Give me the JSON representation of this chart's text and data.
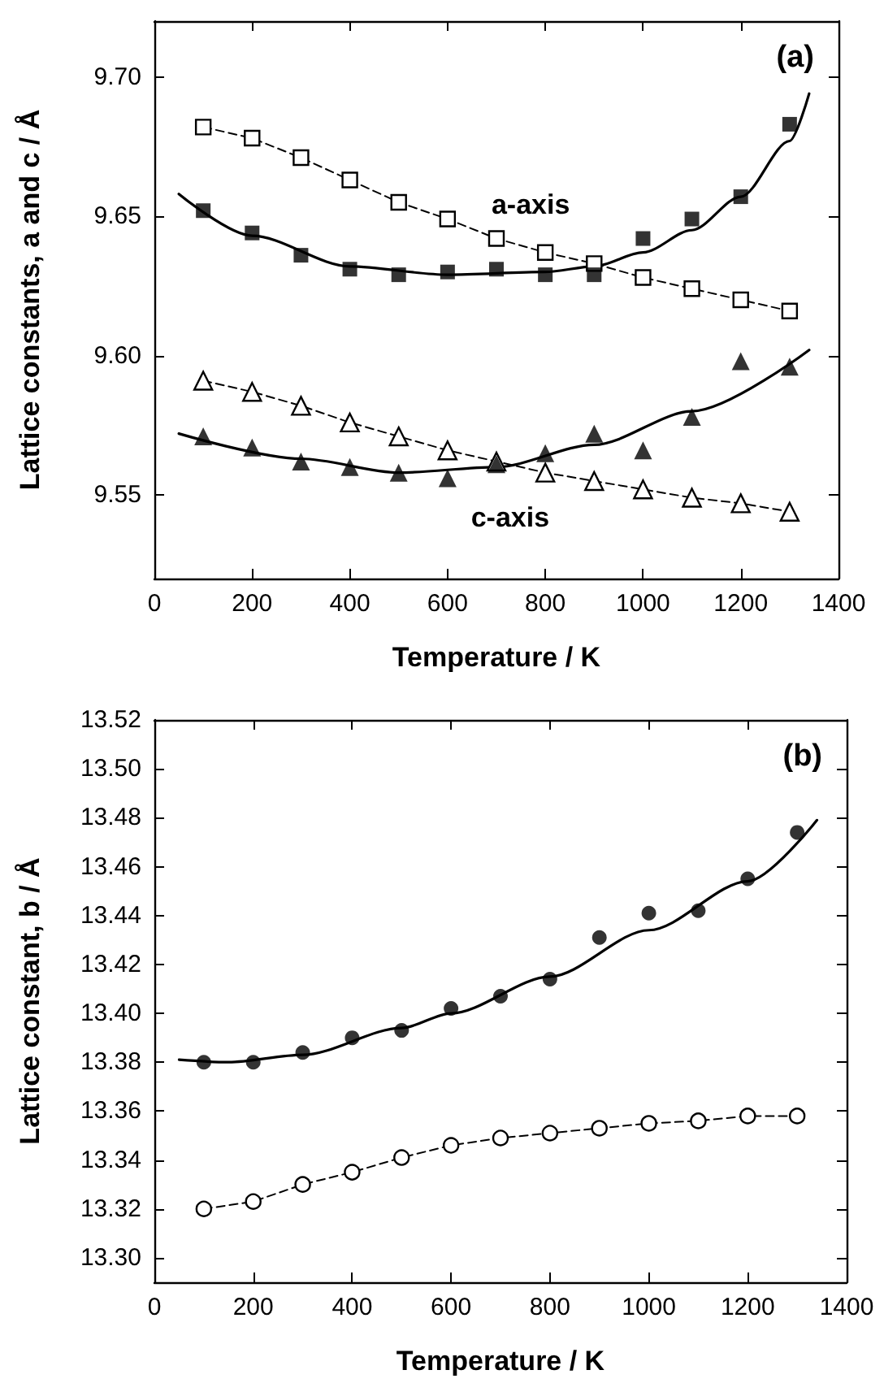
{
  "chart_data": [
    {
      "type": "scatter",
      "title": "(a)",
      "xlabel": "Temperature / K",
      "ylabel": "Lattice constants, a and c / Å",
      "xlim": [
        0,
        1400
      ],
      "xticks": [
        0,
        200,
        400,
        600,
        800,
        1000,
        1200,
        1400
      ],
      "ylim": [
        9.52,
        9.72
      ],
      "yticks": [
        9.55,
        {
          "value": 9.6,
          "label": "9.60"
        },
        9.65,
        {
          "value": 9.7,
          "label": "9.70"
        }
      ],
      "annotations": [
        "a-axis",
        "c-axis"
      ],
      "series": [
        {
          "type": "scatter",
          "marker": "square",
          "color": "#000000",
          "x": [
            100,
            200,
            300,
            400,
            500,
            600,
            700,
            800,
            900,
            1000,
            1100,
            1200,
            1300
          ],
          "values": [
            9.652,
            9.644,
            9.636,
            9.631,
            9.629,
            9.63,
            9.631,
            9.629,
            9.629,
            9.642,
            9.649,
            9.657,
            9.683
          ]
        },
        {
          "type": "line",
          "marker": "square",
          "line_style": "dashed",
          "color": "#000000",
          "x": [
            100,
            200,
            300,
            400,
            500,
            600,
            700,
            800,
            900,
            1000,
            1100,
            1200,
            1300
          ],
          "values": [
            9.682,
            9.678,
            9.671,
            9.663,
            9.655,
            9.649,
            9.642,
            9.637,
            9.633,
            9.628,
            9.624,
            9.62,
            9.616
          ]
        },
        {
          "type": "line",
          "marker": "none",
          "line_style": "solid",
          "color": "#000000",
          "x": [
            50,
            200,
            400,
            600,
            800,
            900,
            1000,
            1100,
            1200,
            1300,
            1340
          ],
          "values": [
            9.658,
            9.643,
            9.632,
            9.629,
            9.63,
            9.632,
            9.637,
            9.645,
            9.657,
            9.677,
            9.694
          ]
        },
        {
          "type": "scatter",
          "marker": "triangle",
          "color": "#000000",
          "x": [
            100,
            200,
            300,
            400,
            500,
            600,
            700,
            800,
            900,
            1000,
            1100,
            1200,
            1300
          ],
          "values": [
            9.571,
            9.567,
            9.562,
            9.56,
            9.558,
            9.556,
            9.561,
            9.565,
            9.572,
            9.566,
            9.578,
            9.598,
            9.596
          ]
        },
        {
          "type": "line",
          "marker": "triangle",
          "line_style": "dashed",
          "color": "#000000",
          "x": [
            100,
            200,
            300,
            400,
            500,
            600,
            700,
            800,
            900,
            1000,
            1100,
            1200,
            1300
          ],
          "values": [
            9.591,
            9.587,
            9.582,
            9.576,
            9.571,
            9.566,
            9.562,
            9.558,
            9.555,
            9.552,
            9.549,
            9.547,
            9.544
          ]
        },
        {
          "type": "line",
          "marker": "none",
          "line_style": "solid",
          "color": "#000000",
          "x": [
            50,
            300,
            500,
            700,
            900,
            1100,
            1340
          ],
          "values": [
            9.572,
            9.563,
            9.558,
            9.56,
            9.568,
            9.58,
            9.602
          ]
        }
      ]
    },
    {
      "type": "scatter",
      "title": "(b)",
      "xlabel": "Temperature / K",
      "ylabel": "Lattice constant, b / Å",
      "xlim": [
        0,
        1400
      ],
      "xticks": [
        0,
        200,
        400,
        600,
        800,
        1000,
        1200,
        1400
      ],
      "ylim": [
        13.29,
        13.52
      ],
      "yticks": [
        {
          "value": 13.3,
          "label": "13.30"
        },
        13.32,
        13.34,
        13.36,
        13.38,
        {
          "value": 13.4,
          "label": "13.40"
        },
        13.42,
        13.44,
        13.46,
        13.48,
        {
          "value": 13.5,
          "label": "13.50"
        },
        13.52
      ],
      "series": [
        {
          "type": "scatter",
          "marker": "circle",
          "color": "#000000",
          "x": [
            100,
            200,
            300,
            400,
            500,
            600,
            700,
            800,
            900,
            1000,
            1100,
            1200,
            1300
          ],
          "values": [
            13.38,
            13.38,
            13.384,
            13.39,
            13.393,
            13.402,
            13.407,
            13.414,
            13.431,
            13.441,
            13.442,
            13.455,
            13.474
          ]
        },
        {
          "type": "line",
          "marker": "circle",
          "line_style": "dashed",
          "color": "#000000",
          "x": [
            100,
            200,
            300,
            400,
            500,
            600,
            700,
            800,
            900,
            1000,
            1100,
            1200,
            1300
          ],
          "values": [
            13.32,
            13.323,
            13.33,
            13.335,
            13.341,
            13.346,
            13.349,
            13.351,
            13.353,
            13.355,
            13.356,
            13.358,
            13.358
          ]
        },
        {
          "type": "line",
          "marker": "none",
          "line_style": "solid",
          "color": "#000000",
          "x": [
            50,
            150,
            300,
            500,
            600,
            800,
            1000,
            1200,
            1340
          ],
          "values": [
            13.381,
            13.38,
            13.383,
            13.394,
            13.4,
            13.415,
            13.434,
            13.454,
            13.479
          ]
        }
      ]
    }
  ]
}
